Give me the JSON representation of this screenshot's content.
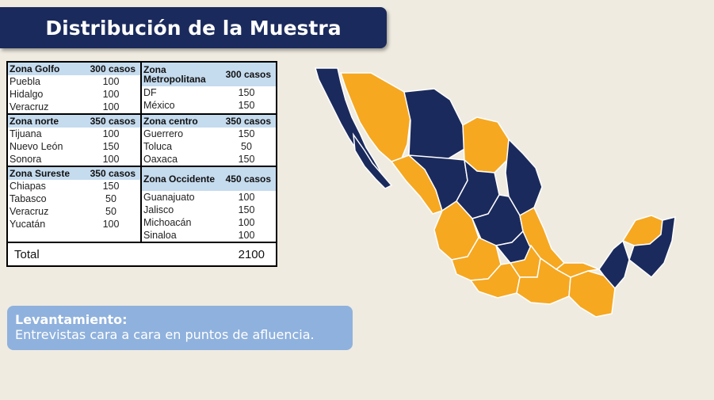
{
  "title": "Distribución de la Muestra",
  "zones": [
    {
      "name": "Zona Golfo",
      "cases": "300 casos",
      "rows": [
        {
          "city": "Puebla",
          "n": "100"
        },
        {
          "city": "Hidalgo",
          "n": "100"
        },
        {
          "city": "Veracruz",
          "n": "100"
        }
      ]
    },
    {
      "name": "Zona Metropolitana",
      "cases": "300 casos",
      "rows": [
        {
          "city": "DF",
          "n": "150"
        },
        {
          "city": "México",
          "n": "150"
        }
      ]
    },
    {
      "name": "Zona norte",
      "cases": "350 casos",
      "rows": [
        {
          "city": "Tijuana",
          "n": "100"
        },
        {
          "city": "Nuevo León",
          "n": "150"
        },
        {
          "city": "Sonora",
          "n": "100"
        }
      ]
    },
    {
      "name": "Zona centro",
      "cases": "350 casos",
      "rows": [
        {
          "city": "Guerrero",
          "n": "150"
        },
        {
          "city": "Toluca",
          "n": "50"
        },
        {
          "city": "Oaxaca",
          "n": "150"
        }
      ]
    },
    {
      "name": "Zona Sureste",
      "cases": "350 casos",
      "rows": [
        {
          "city": "Chiapas",
          "n": "150"
        },
        {
          "city": "Tabasco",
          "n": "50"
        },
        {
          "city": "Veracruz",
          "n": "50"
        },
        {
          "city": "Yucatán",
          "n": "100"
        }
      ]
    },
    {
      "name": "Zona Occidente",
      "cases": "450 casos",
      "rows": [
        {
          "city": "Guanajuato",
          "n": "100"
        },
        {
          "city": "Jalisco",
          "n": "150"
        },
        {
          "city": "Michoacán",
          "n": "100"
        },
        {
          "city": "Sinaloa",
          "n": "100"
        }
      ]
    }
  ],
  "total": {
    "label": "Total",
    "value": "2100"
  },
  "note": {
    "title": "Levantamiento:",
    "body": "Entrevistas cara a cara en puntos de afluencia."
  },
  "colors": {
    "navy": "#1b2a5c",
    "orange": "#f6a821",
    "header": "#c5dbee",
    "note": "#8fb1dd",
    "background": "#efebe1"
  }
}
